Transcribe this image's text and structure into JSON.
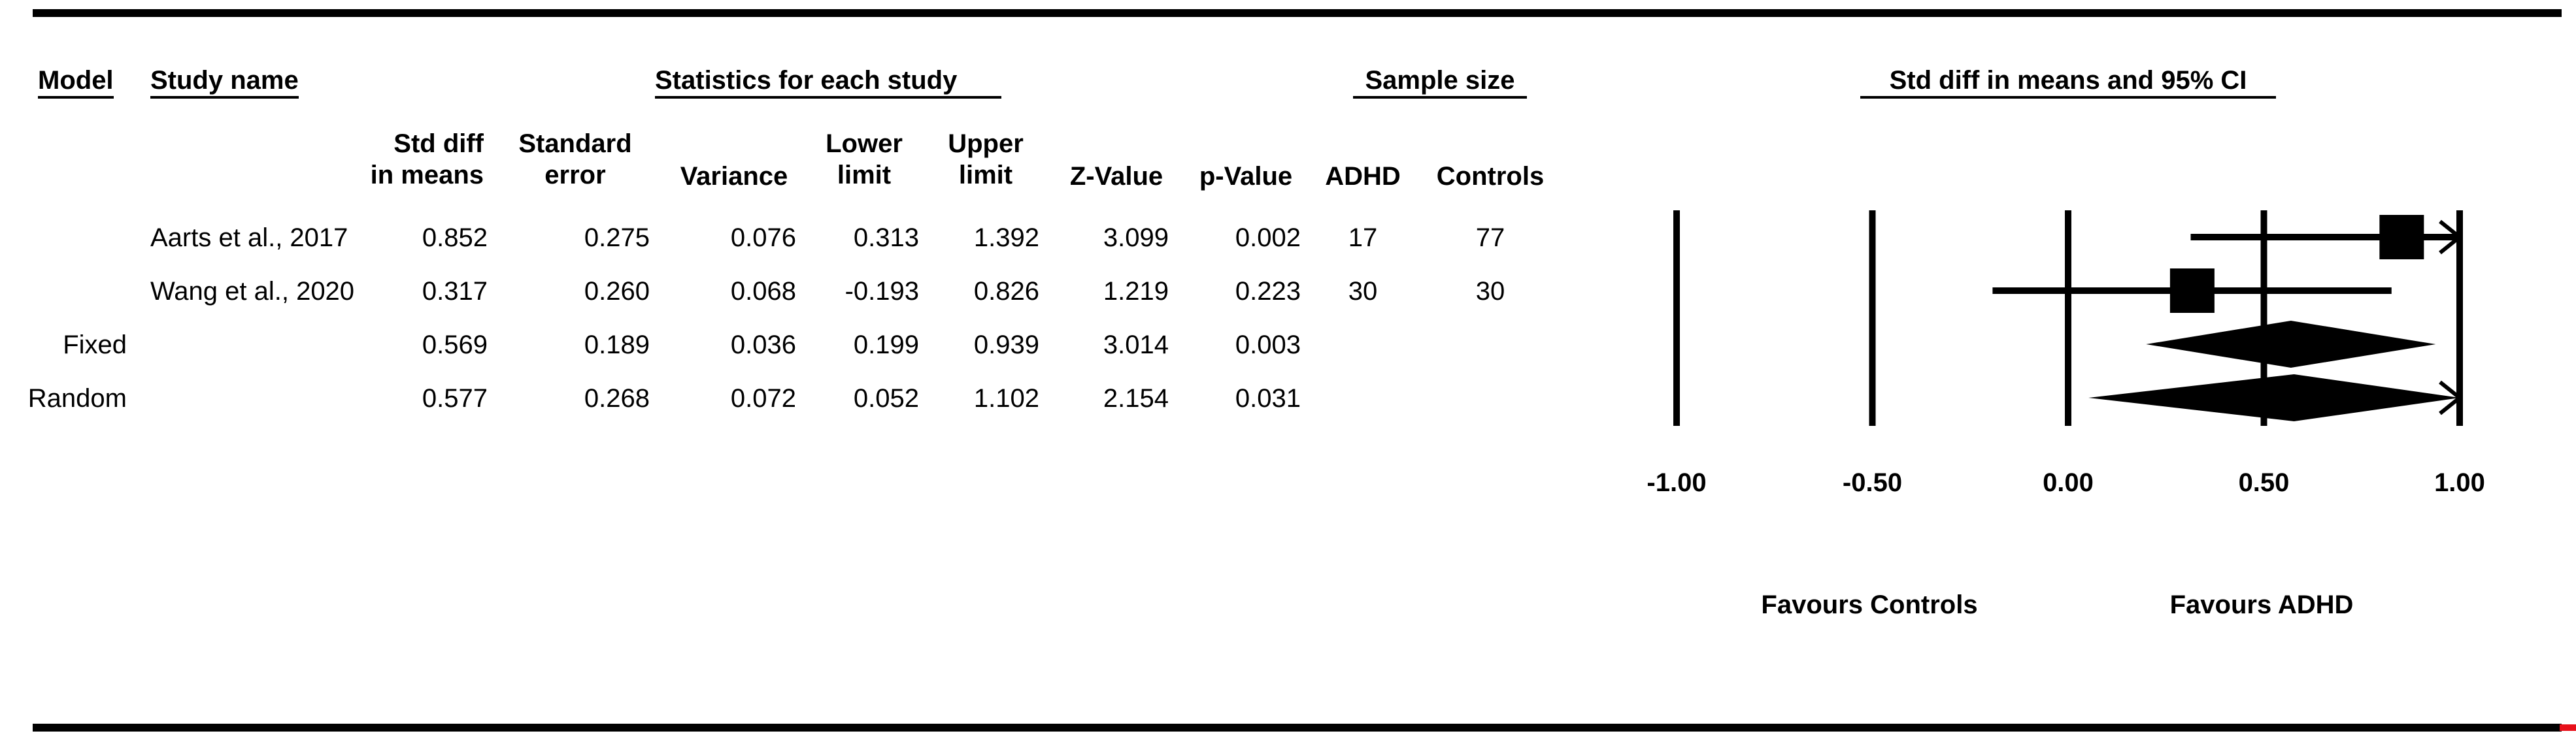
{
  "headers": {
    "model": "Model",
    "study_name": "Study name",
    "statistics": "Statistics for each study",
    "sample_size": "Sample size",
    "ci": "Std diff in means and 95% CI"
  },
  "columns": {
    "std_diff_1": "Std diff",
    "std_diff_2": "in means",
    "se_1": "Standard",
    "se_2": "error",
    "variance": "Variance",
    "lower_1": "Lower",
    "lower_2": "limit",
    "upper_1": "Upper",
    "upper_2": "limit",
    "z": "Z-Value",
    "p": "p-Value",
    "adhd": "ADHD",
    "controls": "Controls"
  },
  "rows": [
    {
      "model": "",
      "study": "Aarts et al., 2017",
      "std_diff": "0.852",
      "se": "0.275",
      "variance": "0.076",
      "lower": "0.313",
      "upper": "1.392",
      "z": "3.099",
      "p": "0.002",
      "adhd": "17",
      "controls": "77"
    },
    {
      "model": "",
      "study": "Wang et al., 2020",
      "std_diff": "0.317",
      "se": "0.260",
      "variance": "0.068",
      "lower": "-0.193",
      "upper": "0.826",
      "z": "1.219",
      "p": "0.223",
      "adhd": "30",
      "controls": "30"
    },
    {
      "model": "Fixed",
      "study": "",
      "std_diff": "0.569",
      "se": "0.189",
      "variance": "0.036",
      "lower": "0.199",
      "upper": "0.939",
      "z": "3.014",
      "p": "0.003",
      "adhd": "",
      "controls": ""
    },
    {
      "model": "Random",
      "study": "",
      "std_diff": "0.577",
      "se": "0.268",
      "variance": "0.072",
      "lower": "0.052",
      "upper": "1.102",
      "z": "2.154",
      "p": "0.031",
      "adhd": "",
      "controls": ""
    }
  ],
  "favours": {
    "left": "Favours Controls",
    "right": "Favours ADHD"
  },
  "chart_data": {
    "type": "forest",
    "title": "Std diff in means and 95% CI",
    "xlim": [
      -1.0,
      1.0
    ],
    "ticks": [
      "-1.00",
      "-0.50",
      "0.00",
      "0.50",
      "1.00"
    ],
    "tick_values": [
      -1.0,
      -0.5,
      0.0,
      0.5,
      1.0
    ],
    "studies": [
      {
        "name": "Aarts et al., 2017",
        "estimate": 0.852,
        "lower": 0.313,
        "upper": 1.392,
        "clipped_upper": true
      },
      {
        "name": "Wang et al., 2020",
        "estimate": 0.317,
        "lower": -0.193,
        "upper": 0.826,
        "clipped_upper": false
      }
    ],
    "summaries": [
      {
        "name": "Fixed",
        "estimate": 0.569,
        "lower": 0.199,
        "upper": 0.939
      },
      {
        "name": "Random",
        "estimate": 0.577,
        "lower": 0.052,
        "upper": 1.102
      }
    ]
  }
}
